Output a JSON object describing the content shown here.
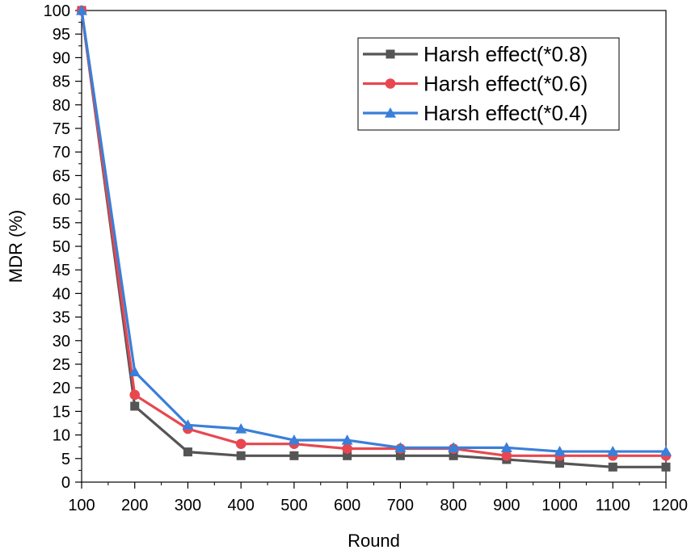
{
  "chart_data": {
    "type": "line",
    "title": "",
    "xlabel": "Round",
    "ylabel": "MDR (%)",
    "xlim": [
      100,
      1200
    ],
    "ylim": [
      0,
      100
    ],
    "x": [
      100,
      200,
      300,
      400,
      500,
      600,
      700,
      800,
      900,
      1000,
      1100,
      1200
    ],
    "xticks": [
      "100",
      "200",
      "300",
      "400",
      "500",
      "600",
      "700",
      "800",
      "900",
      "1000",
      "1100",
      "1200"
    ],
    "yticks": [
      "0",
      "5",
      "10",
      "15",
      "20",
      "25",
      "30",
      "35",
      "40",
      "45",
      "50",
      "55",
      "60",
      "65",
      "70",
      "75",
      "80",
      "85",
      "90",
      "95",
      "100"
    ],
    "grid": false,
    "legend_position": "top-right",
    "series": [
      {
        "name": "Harsh effect(*0.8)",
        "color": "#555555",
        "marker": "square",
        "values": [
          100,
          16.1,
          6.4,
          5.6,
          5.6,
          5.6,
          5.6,
          5.6,
          4.8,
          4.0,
          3.2,
          3.2
        ]
      },
      {
        "name": "Harsh effect(*0.6)",
        "color": "#e8474f",
        "marker": "circle",
        "values": [
          100,
          18.5,
          11.3,
          8.1,
          8.1,
          7.1,
          7.1,
          7.1,
          5.6,
          5.6,
          5.6,
          5.6
        ]
      },
      {
        "name": "Harsh effect(*0.4)",
        "color": "#3a7fd9",
        "marker": "triangle",
        "values": [
          100,
          23.4,
          12.1,
          11.3,
          8.9,
          8.9,
          7.3,
          7.3,
          7.3,
          6.5,
          6.5,
          6.5
        ]
      }
    ]
  }
}
